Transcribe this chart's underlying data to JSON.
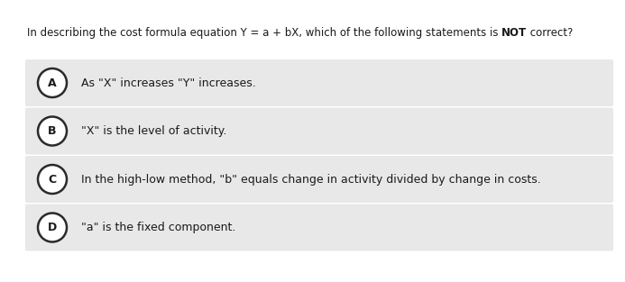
{
  "background_color": "#ffffff",
  "question_text_parts": [
    {
      "text": "In describing the cost formula equation Y = a + bX, which of the following statements is ",
      "bold": false
    },
    {
      "text": "NOT",
      "bold": true
    },
    {
      "text": " correct?",
      "bold": false
    }
  ],
  "options": [
    {
      "label": "A",
      "text": "As \"X\" increases \"Y\" increases."
    },
    {
      "label": "B",
      "text": "\"X\" is the level of activity."
    },
    {
      "label": "C",
      "text": "In the high-low method, \"b\" equals change in activity divided by change in costs."
    },
    {
      "label": "D",
      "text": "\"a\" is the fixed component."
    }
  ],
  "option_bg_color": "#e8e8e8",
  "option_text_color": "#1a1a1a",
  "question_text_color": "#1a1a1a",
  "circle_edge_color": "#2a2a2a",
  "circle_face_color": "#ffffff",
  "font_size_question": 8.5,
  "font_size_option": 9.0,
  "fig_width": 6.93,
  "fig_height": 3.13,
  "dpi": 100
}
